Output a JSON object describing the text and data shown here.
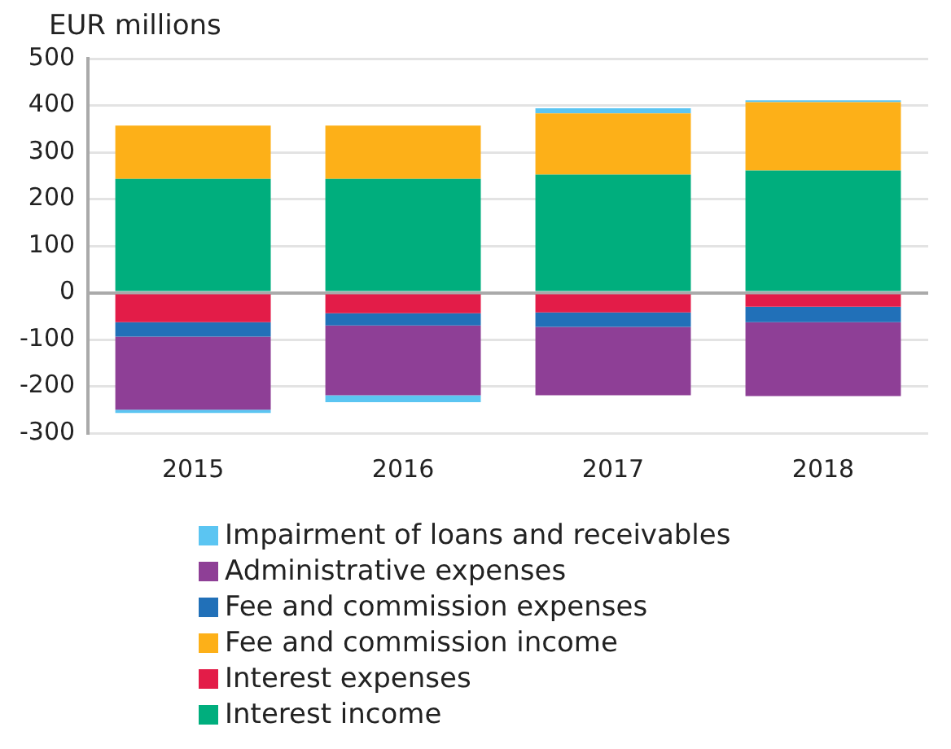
{
  "chart_data": {
    "type": "bar",
    "stacked": true,
    "ylabel": "EUR millions",
    "categories": [
      "2015",
      "2016",
      "2017",
      "2018"
    ],
    "series": [
      {
        "name": "Interest income",
        "color": "#00ae7d",
        "values": [
          243,
          243,
          252,
          261
        ]
      },
      {
        "name": "Interest expenses",
        "color": "#e31c48",
        "values": [
          -63,
          -44,
          -42,
          -30
        ]
      },
      {
        "name": "Fee and commission income",
        "color": "#fdb018",
        "values": [
          114,
          114,
          131,
          146
        ]
      },
      {
        "name": "Fee and commission expenses",
        "color": "#2170b8",
        "values": [
          -31,
          -26,
          -31,
          -33
        ]
      },
      {
        "name": "Administrative expenses",
        "color": "#8e3f96",
        "values": [
          -156,
          -149,
          -146,
          -158
        ]
      },
      {
        "name": "Impairment of loans and receivables",
        "color": "#5bc5f2",
        "values": [
          -7,
          -15,
          11,
          4
        ]
      }
    ],
    "ylim": [
      -300,
      500
    ],
    "yticks": [
      -300,
      -200,
      -100,
      0,
      100,
      200,
      300,
      400,
      500
    ],
    "grid": "y",
    "legend": "bottom"
  }
}
